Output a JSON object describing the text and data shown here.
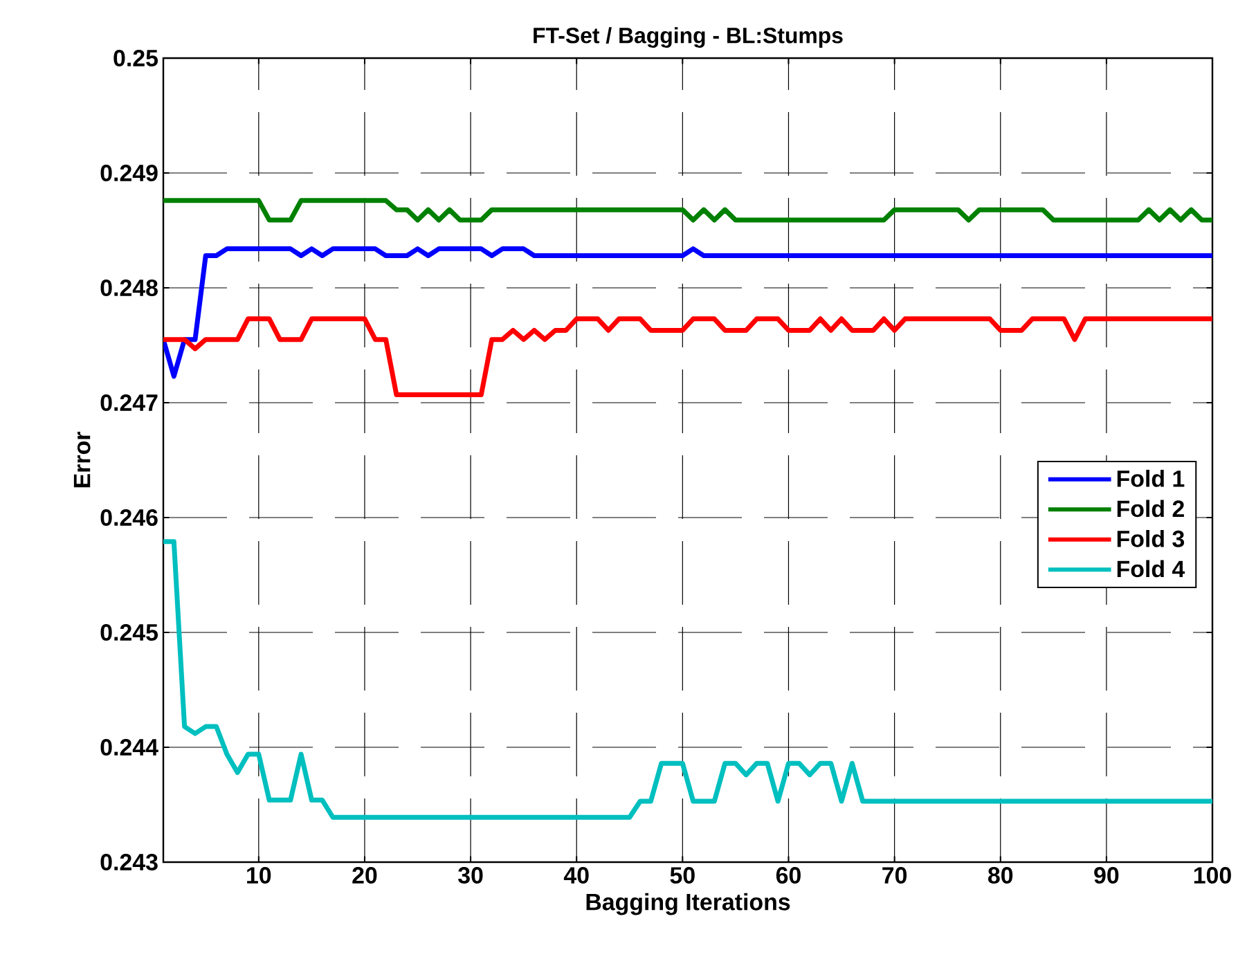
{
  "chart_data": {
    "type": "line",
    "title": "FT-Set / Bagging - BL:Stumps",
    "xlabel": "Bagging Iterations",
    "ylabel": "Error",
    "x": [
      1,
      2,
      3,
      4,
      5,
      6,
      7,
      8,
      9,
      10,
      11,
      12,
      13,
      14,
      15,
      16,
      17,
      18,
      19,
      20,
      21,
      22,
      23,
      24,
      25,
      26,
      27,
      28,
      29,
      30,
      31,
      32,
      33,
      34,
      35,
      36,
      37,
      38,
      39,
      40,
      41,
      42,
      43,
      44,
      45,
      46,
      47,
      48,
      49,
      50,
      51,
      52,
      53,
      54,
      55,
      56,
      57,
      58,
      59,
      60,
      61,
      62,
      63,
      64,
      65,
      66,
      67,
      68,
      69,
      70,
      71,
      72,
      73,
      74,
      75,
      76,
      77,
      78,
      79,
      80,
      81,
      82,
      83,
      84,
      85,
      86,
      87,
      88,
      89,
      90,
      91,
      92,
      93,
      94,
      95,
      96,
      97,
      98,
      99,
      100
    ],
    "xlim": [
      1,
      100
    ],
    "ylim": [
      0.243,
      0.25
    ],
    "xticks": [
      10,
      20,
      30,
      40,
      50,
      60,
      70,
      80,
      90,
      100
    ],
    "yticks": [
      0.243,
      0.244,
      0.245,
      0.246,
      0.247,
      0.248,
      0.249,
      0.25
    ],
    "grid": true,
    "legend": "right",
    "line_style": "solid",
    "series": [
      {
        "name": "Fold 1",
        "color": "#0000ff",
        "values": [
          0.24755,
          0.24723,
          0.24755,
          0.24755,
          0.24828,
          0.24828,
          0.24834,
          0.24834,
          0.24834,
          0.24834,
          0.24834,
          0.24834,
          0.24834,
          0.24828,
          0.24834,
          0.24828,
          0.24834,
          0.24834,
          0.24834,
          0.24834,
          0.24834,
          0.24828,
          0.24828,
          0.24828,
          0.24834,
          0.24828,
          0.24834,
          0.24834,
          0.24834,
          0.24834,
          0.24834,
          0.24828,
          0.24834,
          0.24834,
          0.24834,
          0.24828,
          0.24828,
          0.24828,
          0.24828,
          0.24828,
          0.24828,
          0.24828,
          0.24828,
          0.24828,
          0.24828,
          0.24828,
          0.24828,
          0.24828,
          0.24828,
          0.24828,
          0.24834,
          0.24828,
          0.24828,
          0.24828,
          0.24828,
          0.24828,
          0.24828,
          0.24828,
          0.24828,
          0.24828,
          0.24828,
          0.24828,
          0.24828,
          0.24828,
          0.24828,
          0.24828,
          0.24828,
          0.24828,
          0.24828,
          0.24828,
          0.24828,
          0.24828,
          0.24828,
          0.24828,
          0.24828,
          0.24828,
          0.24828,
          0.24828,
          0.24828,
          0.24828,
          0.24828,
          0.24828,
          0.24828,
          0.24828,
          0.24828,
          0.24828,
          0.24828,
          0.24828,
          0.24828,
          0.24828,
          0.24828,
          0.24828,
          0.24828,
          0.24828,
          0.24828,
          0.24828,
          0.24828,
          0.24828,
          0.24828,
          0.24828
        ]
      },
      {
        "name": "Fold 2",
        "color": "#008000",
        "values": [
          0.24876,
          0.24876,
          0.24876,
          0.24876,
          0.24876,
          0.24876,
          0.24876,
          0.24876,
          0.24876,
          0.24876,
          0.24859,
          0.24859,
          0.24859,
          0.24876,
          0.24876,
          0.24876,
          0.24876,
          0.24876,
          0.24876,
          0.24876,
          0.24876,
          0.24876,
          0.24868,
          0.24868,
          0.24859,
          0.24868,
          0.24859,
          0.24868,
          0.24859,
          0.24859,
          0.24859,
          0.24868,
          0.24868,
          0.24868,
          0.24868,
          0.24868,
          0.24868,
          0.24868,
          0.24868,
          0.24868,
          0.24868,
          0.24868,
          0.24868,
          0.24868,
          0.24868,
          0.24868,
          0.24868,
          0.24868,
          0.24868,
          0.24868,
          0.24859,
          0.24868,
          0.24859,
          0.24868,
          0.24859,
          0.24859,
          0.24859,
          0.24859,
          0.24859,
          0.24859,
          0.24859,
          0.24859,
          0.24859,
          0.24859,
          0.24859,
          0.24859,
          0.24859,
          0.24859,
          0.24859,
          0.24868,
          0.24868,
          0.24868,
          0.24868,
          0.24868,
          0.24868,
          0.24868,
          0.24859,
          0.24868,
          0.24868,
          0.24868,
          0.24868,
          0.24868,
          0.24868,
          0.24868,
          0.24859,
          0.24859,
          0.24859,
          0.24859,
          0.24859,
          0.24859,
          0.24859,
          0.24859,
          0.24859,
          0.24868,
          0.24859,
          0.24868,
          0.24859,
          0.24868,
          0.24859,
          0.24859
        ]
      },
      {
        "name": "Fold 3",
        "color": "#ff0000",
        "values": [
          0.24755,
          0.24755,
          0.24755,
          0.24747,
          0.24755,
          0.24755,
          0.24755,
          0.24755,
          0.24773,
          0.24773,
          0.24773,
          0.24755,
          0.24755,
          0.24755,
          0.24773,
          0.24773,
          0.24773,
          0.24773,
          0.24773,
          0.24773,
          0.24755,
          0.24755,
          0.24707,
          0.24707,
          0.24707,
          0.24707,
          0.24707,
          0.24707,
          0.24707,
          0.24707,
          0.24707,
          0.24755,
          0.24755,
          0.24763,
          0.24755,
          0.24763,
          0.24755,
          0.24763,
          0.24763,
          0.24773,
          0.24773,
          0.24773,
          0.24763,
          0.24773,
          0.24773,
          0.24773,
          0.24763,
          0.24763,
          0.24763,
          0.24763,
          0.24773,
          0.24773,
          0.24773,
          0.24763,
          0.24763,
          0.24763,
          0.24773,
          0.24773,
          0.24773,
          0.24763,
          0.24763,
          0.24763,
          0.24773,
          0.24763,
          0.24773,
          0.24763,
          0.24763,
          0.24763,
          0.24773,
          0.24763,
          0.24773,
          0.24773,
          0.24773,
          0.24773,
          0.24773,
          0.24773,
          0.24773,
          0.24773,
          0.24773,
          0.24763,
          0.24763,
          0.24763,
          0.24773,
          0.24773,
          0.24773,
          0.24773,
          0.24755,
          0.24773,
          0.24773,
          0.24773,
          0.24773,
          0.24773,
          0.24773,
          0.24773,
          0.24773,
          0.24773,
          0.24773,
          0.24773,
          0.24773,
          0.24773
        ]
      },
      {
        "name": "Fold 4",
        "color": "#00bfbf",
        "values": [
          0.24579,
          0.24579,
          0.24418,
          0.24412,
          0.24418,
          0.24418,
          0.24394,
          0.24378,
          0.24394,
          0.24394,
          0.24354,
          0.24354,
          0.24354,
          0.24394,
          0.24354,
          0.24354,
          0.24339,
          0.24339,
          0.24339,
          0.24339,
          0.24339,
          0.24339,
          0.24339,
          0.24339,
          0.24339,
          0.24339,
          0.24339,
          0.24339,
          0.24339,
          0.24339,
          0.24339,
          0.24339,
          0.24339,
          0.24339,
          0.24339,
          0.24339,
          0.24339,
          0.24339,
          0.24339,
          0.24339,
          0.24339,
          0.24339,
          0.24339,
          0.24339,
          0.24339,
          0.24353,
          0.24353,
          0.24386,
          0.24386,
          0.24386,
          0.24353,
          0.24353,
          0.24353,
          0.24386,
          0.24386,
          0.24376,
          0.24386,
          0.24386,
          0.24353,
          0.24386,
          0.24386,
          0.24376,
          0.24386,
          0.24386,
          0.24353,
          0.24386,
          0.24353,
          0.24353,
          0.24353,
          0.24353,
          0.24353,
          0.24353,
          0.24353,
          0.24353,
          0.24353,
          0.24353,
          0.24353,
          0.24353,
          0.24353,
          0.24353,
          0.24353,
          0.24353,
          0.24353,
          0.24353,
          0.24353,
          0.24353,
          0.24353,
          0.24353,
          0.24353,
          0.24353,
          0.24353,
          0.24353,
          0.24353,
          0.24353,
          0.24353,
          0.24353,
          0.24353,
          0.24353,
          0.24353,
          0.24353
        ]
      }
    ]
  }
}
